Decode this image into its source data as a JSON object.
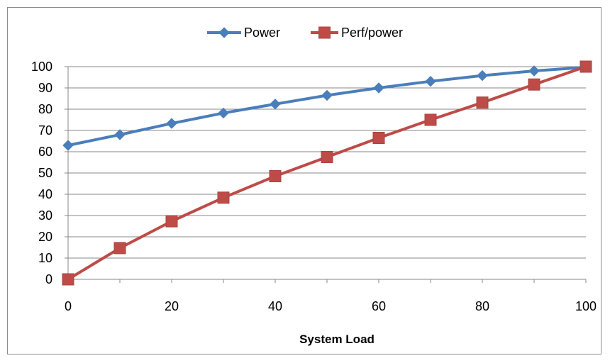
{
  "chart_data": {
    "type": "line",
    "title": "",
    "xlabel": "System Load",
    "ylabel": "",
    "xlim": [
      0,
      100
    ],
    "ylim": [
      0,
      100
    ],
    "x_ticks": [
      0,
      20,
      40,
      60,
      80,
      100
    ],
    "y_ticks": [
      0,
      10,
      20,
      30,
      40,
      50,
      60,
      70,
      80,
      90,
      100
    ],
    "grid": "horizontal",
    "legend_position": "top-center",
    "x": [
      0,
      10,
      20,
      30,
      40,
      50,
      60,
      70,
      80,
      90,
      100
    ],
    "series": [
      {
        "name": "Power",
        "color": "#4a7ebb",
        "marker": "diamond",
        "values": [
          63,
          68,
          73.3,
          78.2,
          82.4,
          86.5,
          90,
          93.1,
          95.8,
          98,
          99.7
        ]
      },
      {
        "name": "Perf/power",
        "color": "#be4b48",
        "marker": "square",
        "values": [
          0,
          14.7,
          27.3,
          38.4,
          48.5,
          57.5,
          66.5,
          75,
          83.1,
          91.6,
          100
        ]
      }
    ]
  }
}
